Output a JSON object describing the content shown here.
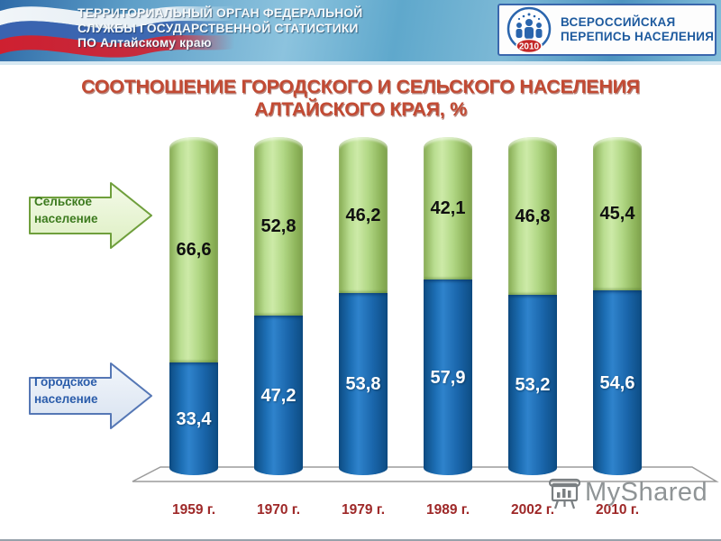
{
  "header": {
    "org_name_lines": [
      "ТЕРРИТОРИАЛЬНЫЙ ОРГАН ФЕДЕРАЛЬНОЙ",
      "СЛУЖБЫ ГОСУДАРСТВЕННОЙ СТАТИСТИКИ",
      "ПО Алтайскому краю"
    ],
    "census": {
      "title_line1": "ВСЕРОССИЙСКАЯ",
      "title_line2": "ПЕРЕПИСЬ НАСЕЛЕНИЯ",
      "year_badge": "2010"
    }
  },
  "title": {
    "line1": "СООТНОШЕНИЕ ГОРОДСКОГО И СЕЛЬСКОГО НАСЕЛЕНИЯ",
    "line2": "АЛТАЙСКОГО КРАЯ, %"
  },
  "legend": {
    "rural": {
      "line1": "Сельское",
      "line2": "население"
    },
    "urban": {
      "line1": "Городское",
      "line2": "население"
    }
  },
  "chart_data": {
    "type": "bar",
    "stacked": true,
    "orientation": "vertical",
    "title": "СООТНОШЕНИЕ ГОРОДСКОГО И СЕЛЬСКОГО НАСЕЛЕНИЯ АЛТАЙСКОГО КРАЯ, %",
    "categories": [
      "1959 г.",
      "1970 г.",
      "1979 г.",
      "1989 г.",
      "2002 г.",
      "2010 г."
    ],
    "series": [
      {
        "name": "Городское население",
        "color": "#1a6ab1",
        "values": [
          33.4,
          47.2,
          53.8,
          57.9,
          53.2,
          54.6
        ],
        "labels": [
          "33,4",
          "47,2",
          "53,8",
          "57,9",
          "53,2",
          "54,6"
        ]
      },
      {
        "name": "Сельское население",
        "color": "#b3d988",
        "values": [
          66.6,
          52.8,
          46.2,
          42.1,
          46.8,
          45.4
        ],
        "labels": [
          "66,6",
          "52,8",
          "46,2",
          "42,1",
          "46,8",
          "45,4"
        ]
      }
    ],
    "ylim": [
      0,
      100
    ],
    "grid": false,
    "legend_position": "left-arrows"
  },
  "watermark": {
    "text": "MyShared"
  },
  "colors": {
    "title_text": "#c24a33",
    "year_label": "#9e2828",
    "urban_bar": "#1a6ab1",
    "rural_bar": "#b3d988",
    "header_bg": "#5b9cc4",
    "census_text": "#1d5a9e"
  }
}
